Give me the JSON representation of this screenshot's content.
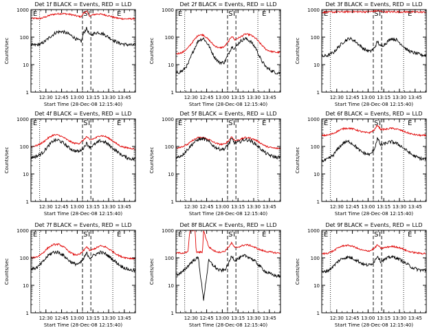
{
  "colors": {
    "events": "#000000",
    "lld": "#e00000",
    "axis": "#000000",
    "background": "#ffffff"
  },
  "common": {
    "ylabel": "Counts/sec",
    "xlabel": "Start Time (28-Dec-08 12:15:40)",
    "x_ticks": [
      "12:30",
      "12:45",
      "13:00",
      "13:15",
      "13:30",
      "13:45"
    ],
    "y_ticks": [
      "1",
      "10",
      "100",
      "1000"
    ],
    "markers": [
      "E",
      "S",
      "I",
      "E"
    ]
  },
  "chart_data": [
    {
      "type": "line",
      "title": "Det 1f BLACK = Events, RED = LLD",
      "xlim": [
        "12:15:40",
        "13:55:40"
      ],
      "ylim": [
        1,
        1000
      ],
      "yscale": "log",
      "series": [
        {
          "name": "Events",
          "color": "#000000",
          "x": [
            "12:17",
            "12:25",
            "12:30",
            "12:35",
            "12:40",
            "12:45",
            "12:50",
            "12:55",
            "13:00",
            "13:04",
            "13:06",
            "13:09",
            "13:12",
            "13:15",
            "13:20",
            "13:25",
            "13:30",
            "13:35",
            "13:40",
            "13:45",
            "13:50",
            "13:55"
          ],
          "values": [
            50,
            55,
            75,
            110,
            150,
            160,
            140,
            110,
            80,
            70,
            140,
            210,
            115,
            130,
            150,
            130,
            100,
            75,
            60,
            55,
            52,
            50
          ]
        },
        {
          "name": "LLD",
          "color": "#e00000",
          "x": [
            "12:17",
            "12:25",
            "12:30",
            "12:35",
            "12:40",
            "12:45",
            "12:50",
            "12:55",
            "13:00",
            "13:04",
            "13:06",
            "13:09",
            "13:12",
            "13:15",
            "13:20",
            "13:25",
            "13:30",
            "13:35",
            "13:40",
            "13:45",
            "13:50",
            "13:55"
          ],
          "values": [
            480,
            480,
            550,
            650,
            700,
            720,
            700,
            650,
            580,
            550,
            760,
            860,
            580,
            650,
            700,
            660,
            600,
            520,
            480,
            460,
            460,
            470
          ]
        }
      ]
    },
    {
      "type": "line",
      "title": "Det 2f BLACK = Events, RED = LLD",
      "xlim": [
        "12:15:40",
        "13:55:40"
      ],
      "ylim": [
        1,
        1000
      ],
      "yscale": "log",
      "series": [
        {
          "name": "Events",
          "color": "#000000",
          "x": [
            "12:17",
            "12:22",
            "12:27",
            "12:32",
            "12:37",
            "12:42",
            "12:47",
            "12:52",
            "12:57",
            "13:02",
            "13:06",
            "13:09",
            "13:12",
            "13:17",
            "13:22",
            "13:27",
            "13:32",
            "13:37",
            "13:42",
            "13:47",
            "13:52",
            "13:55"
          ],
          "values": [
            5,
            6,
            10,
            30,
            75,
            90,
            50,
            20,
            12,
            12,
            25,
            45,
            40,
            70,
            90,
            70,
            40,
            15,
            8,
            6,
            5,
            5
          ]
        },
        {
          "name": "LLD",
          "color": "#e00000",
          "x": [
            "12:17",
            "12:22",
            "12:27",
            "12:32",
            "12:37",
            "12:42",
            "12:47",
            "12:52",
            "12:57",
            "13:02",
            "13:06",
            "13:09",
            "13:12",
            "13:17",
            "13:22",
            "13:27",
            "13:32",
            "13:37",
            "13:42",
            "13:47",
            "13:52",
            "13:55"
          ],
          "values": [
            25,
            28,
            40,
            70,
            120,
            120,
            80,
            50,
            40,
            45,
            70,
            110,
            80,
            100,
            130,
            120,
            90,
            55,
            35,
            30,
            28,
            28
          ]
        }
      ]
    },
    {
      "type": "line",
      "title": "Det 3f BLACK = Events, RED = LLD",
      "xlim": [
        "12:15:40",
        "13:55:40"
      ],
      "ylim": [
        1,
        1000
      ],
      "yscale": "log",
      "series": [
        {
          "name": "Events",
          "color": "#000000",
          "x": [
            "12:17",
            "12:22",
            "12:27",
            "12:32",
            "12:37",
            "12:42",
            "12:47",
            "12:52",
            "12:57",
            "13:02",
            "13:06",
            "13:09",
            "13:12",
            "13:17",
            "13:22",
            "13:27",
            "13:32",
            "13:37",
            "13:42",
            "13:47",
            "13:52",
            "13:55"
          ],
          "values": [
            20,
            22,
            28,
            45,
            70,
            90,
            75,
            50,
            35,
            30,
            40,
            70,
            45,
            60,
            90,
            80,
            55,
            35,
            28,
            25,
            22,
            22
          ]
        },
        {
          "name": "LLD",
          "color": "#e00000",
          "x": [
            "12:17",
            "12:30",
            "12:45",
            "13:00",
            "13:09",
            "13:15",
            "13:30",
            "13:45",
            "13:55"
          ],
          "values": [
            800,
            820,
            840,
            830,
            900,
            830,
            830,
            820,
            810
          ]
        }
      ]
    },
    {
      "type": "line",
      "title": "Det 4f BLACK = Events, RED = LLD",
      "xlim": [
        "12:15:40",
        "13:55:40"
      ],
      "ylim": [
        1,
        1000
      ],
      "yscale": "log",
      "series": [
        {
          "name": "Events",
          "color": "#000000",
          "x": [
            "12:17",
            "12:22",
            "12:27",
            "12:32",
            "12:37",
            "12:42",
            "12:47",
            "12:52",
            "12:57",
            "13:02",
            "13:06",
            "13:09",
            "13:12",
            "13:17",
            "13:22",
            "13:27",
            "13:32",
            "13:37",
            "13:42",
            "13:47",
            "13:52",
            "13:55"
          ],
          "values": [
            40,
            45,
            60,
            100,
            160,
            170,
            130,
            90,
            70,
            65,
            90,
            130,
            95,
            120,
            160,
            140,
            100,
            70,
            50,
            40,
            35,
            35
          ]
        },
        {
          "name": "LLD",
          "color": "#e00000",
          "x": [
            "12:17",
            "12:22",
            "12:27",
            "12:32",
            "12:37",
            "12:42",
            "12:47",
            "12:52",
            "12:57",
            "13:02",
            "13:06",
            "13:09",
            "13:12",
            "13:17",
            "13:22",
            "13:27",
            "13:32",
            "13:37",
            "13:42",
            "13:47",
            "13:52",
            "13:55"
          ],
          "values": [
            100,
            110,
            140,
            200,
            260,
            260,
            210,
            160,
            130,
            130,
            170,
            230,
            170,
            200,
            250,
            230,
            180,
            130,
            100,
            90,
            85,
            80
          ]
        }
      ]
    },
    {
      "type": "line",
      "title": "Det 5f BLACK = Events, RED = LLD",
      "xlim": [
        "12:15:40",
        "13:55:40"
      ],
      "ylim": [
        1,
        1000
      ],
      "yscale": "log",
      "series": [
        {
          "name": "Events",
          "color": "#000000",
          "x": [
            "12:17",
            "12:22",
            "12:27",
            "12:32",
            "12:37",
            "12:42",
            "12:47",
            "12:52",
            "12:57",
            "13:02",
            "13:06",
            "13:09",
            "13:12",
            "13:17",
            "13:22",
            "13:27",
            "13:32",
            "13:37",
            "13:42",
            "13:47",
            "13:52",
            "13:55"
          ],
          "values": [
            40,
            50,
            80,
            130,
            180,
            190,
            150,
            100,
            80,
            80,
            120,
            190,
            130,
            150,
            180,
            160,
            120,
            80,
            55,
            45,
            40,
            40
          ]
        },
        {
          "name": "LLD",
          "color": "#e00000",
          "x": [
            "12:17",
            "12:22",
            "12:27",
            "12:32",
            "12:37",
            "12:42",
            "12:47",
            "12:52",
            "12:57",
            "13:02",
            "13:06",
            "13:09",
            "13:12",
            "13:17",
            "13:22",
            "13:27",
            "13:32",
            "13:37",
            "13:42",
            "13:47",
            "13:52",
            "13:55"
          ],
          "values": [
            90,
            100,
            120,
            170,
            210,
            210,
            180,
            140,
            120,
            120,
            160,
            230,
            160,
            180,
            210,
            200,
            170,
            130,
            100,
            90,
            85,
            85
          ]
        }
      ]
    },
    {
      "type": "line",
      "title": "Det 6f BLACK = Events, RED = LLD",
      "xlim": [
        "12:15:40",
        "13:55:40"
      ],
      "ylim": [
        1,
        1000
      ],
      "yscale": "log",
      "series": [
        {
          "name": "Events",
          "color": "#000000",
          "x": [
            "12:17",
            "12:22",
            "12:27",
            "12:32",
            "12:37",
            "12:42",
            "12:47",
            "12:52",
            "12:57",
            "13:02",
            "13:06",
            "13:09",
            "13:12",
            "13:17",
            "13:22",
            "13:27",
            "13:32",
            "13:37",
            "13:42",
            "13:47",
            "13:52",
            "13:55"
          ],
          "values": [
            30,
            35,
            50,
            90,
            140,
            150,
            110,
            70,
            55,
            50,
            80,
            200,
            110,
            130,
            150,
            130,
            100,
            70,
            50,
            40,
            35,
            35
          ]
        },
        {
          "name": "LLD",
          "color": "#e00000",
          "x": [
            "12:17",
            "12:22",
            "12:27",
            "12:32",
            "12:37",
            "12:42",
            "12:47",
            "12:52",
            "12:57",
            "13:02",
            "13:06",
            "13:09",
            "13:12",
            "13:17",
            "13:22",
            "13:27",
            "13:32",
            "13:37",
            "13:42",
            "13:47",
            "13:52",
            "13:55"
          ],
          "values": [
            250,
            260,
            300,
            380,
            450,
            460,
            420,
            360,
            320,
            320,
            400,
            600,
            420,
            420,
            460,
            430,
            380,
            320,
            280,
            260,
            250,
            250
          ]
        }
      ]
    },
    {
      "type": "line",
      "title": "Det 7f BLACK = Events, RED = LLD",
      "xlim": [
        "12:15:40",
        "13:55:40"
      ],
      "ylim": [
        1,
        1000
      ],
      "yscale": "log",
      "series": [
        {
          "name": "Events",
          "color": "#000000",
          "x": [
            "12:17",
            "12:22",
            "12:27",
            "12:32",
            "12:37",
            "12:42",
            "12:47",
            "12:52",
            "12:57",
            "13:02",
            "13:06",
            "13:09",
            "13:12",
            "13:17",
            "13:22",
            "13:27",
            "13:32",
            "13:37",
            "13:42",
            "13:47",
            "13:52",
            "13:55"
          ],
          "values": [
            40,
            45,
            70,
            120,
            160,
            160,
            120,
            80,
            60,
            60,
            90,
            150,
            100,
            130,
            160,
            140,
            100,
            70,
            50,
            40,
            35,
            35
          ]
        },
        {
          "name": "LLD",
          "color": "#e00000",
          "x": [
            "12:17",
            "12:22",
            "12:27",
            "12:32",
            "12:37",
            "12:42",
            "12:47",
            "12:52",
            "12:57",
            "13:02",
            "13:06",
            "13:09",
            "13:12",
            "13:17",
            "13:22",
            "13:27",
            "13:32",
            "13:37",
            "13:42",
            "13:47",
            "13:52",
            "13:55"
          ],
          "values": [
            100,
            110,
            150,
            230,
            300,
            310,
            250,
            170,
            130,
            130,
            180,
            260,
            180,
            220,
            270,
            250,
            190,
            140,
            110,
            100,
            95,
            95
          ]
        }
      ]
    },
    {
      "type": "line",
      "title": "Det 8f BLACK = Events, RED = LLD",
      "xlim": [
        "12:15:40",
        "13:55:40"
      ],
      "ylim": [
        1,
        1000
      ],
      "yscale": "log",
      "series": [
        {
          "name": "Events",
          "color": "#000000",
          "x": [
            "12:17",
            "12:22",
            "12:27",
            "12:32",
            "12:37",
            "12:42",
            "12:47",
            "12:52",
            "12:57",
            "13:02",
            "13:06",
            "13:09",
            "13:12",
            "13:17",
            "13:22",
            "13:27",
            "13:32",
            "13:37",
            "13:42",
            "13:47",
            "13:52",
            "13:55"
          ],
          "values": [
            25,
            30,
            50,
            80,
            100,
            3,
            80,
            50,
            35,
            35,
            60,
            120,
            80,
            100,
            120,
            100,
            70,
            45,
            30,
            25,
            22,
            22
          ]
        },
        {
          "name": "LLD",
          "color": "#e00000",
          "x": [
            "12:17",
            "12:22",
            "12:27",
            "12:29",
            "12:30",
            "12:34",
            "12:35",
            "12:41",
            "12:42",
            "12:47",
            "12:52",
            "12:57",
            "13:02",
            "13:06",
            "13:09",
            "13:12",
            "13:17",
            "13:22",
            "13:27",
            "13:32",
            "13:37",
            "13:42",
            "13:47",
            "13:52",
            "13:55"
          ],
          "values": [
            150,
            150,
            160,
            1000,
            1000,
            1000,
            160,
            160,
            1000,
            250,
            180,
            160,
            170,
            250,
            350,
            230,
            260,
            300,
            280,
            230,
            190,
            170,
            160,
            150,
            150
          ]
        }
      ]
    },
    {
      "type": "line",
      "title": "Det 9f BLACK = Events, RED = LLD",
      "xlim": [
        "12:15:40",
        "13:55:40"
      ],
      "ylim": [
        1,
        1000
      ],
      "yscale": "log",
      "series": [
        {
          "name": "Events",
          "color": "#000000",
          "x": [
            "12:17",
            "12:22",
            "12:27",
            "12:32",
            "12:37",
            "12:42",
            "12:47",
            "12:52",
            "12:57",
            "13:02",
            "13:06",
            "13:09",
            "13:12",
            "13:17",
            "13:22",
            "13:27",
            "13:32",
            "13:37",
            "13:42",
            "13:47",
            "13:52",
            "13:55"
          ],
          "values": [
            30,
            35,
            50,
            80,
            100,
            105,
            90,
            70,
            55,
            55,
            75,
            120,
            75,
            90,
            110,
            100,
            80,
            60,
            45,
            38,
            35,
            35
          ]
        },
        {
          "name": "LLD",
          "color": "#e00000",
          "x": [
            "12:17",
            "12:22",
            "12:27",
            "12:32",
            "12:37",
            "12:42",
            "12:47",
            "12:52",
            "12:57",
            "13:02",
            "13:06",
            "13:09",
            "13:12",
            "13:17",
            "13:22",
            "13:27",
            "13:32",
            "13:37",
            "13:42",
            "13:47",
            "13:52",
            "13:55"
          ],
          "values": [
            140,
            150,
            180,
            240,
            280,
            280,
            250,
            200,
            180,
            180,
            220,
            300,
            220,
            240,
            260,
            250,
            220,
            180,
            160,
            150,
            145,
            145
          ]
        }
      ]
    }
  ]
}
